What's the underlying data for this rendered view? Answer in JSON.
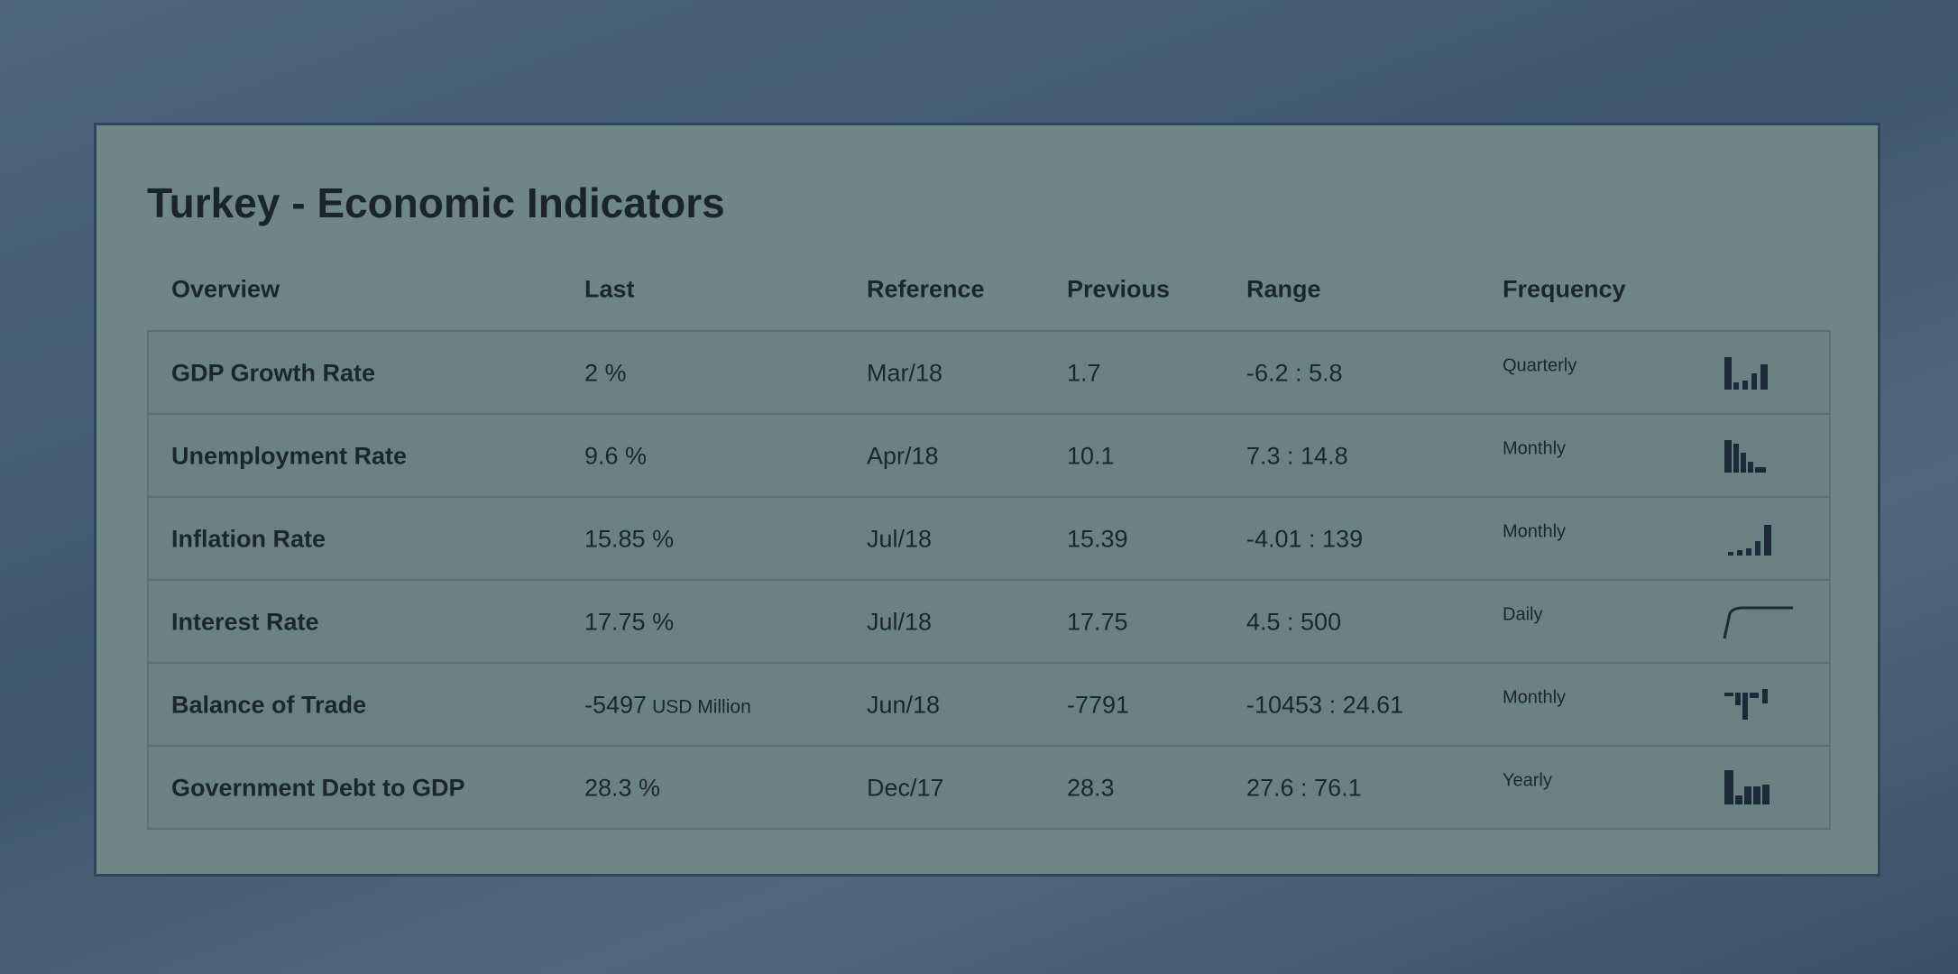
{
  "header": {
    "title": "Turkey - Economic Indicators"
  },
  "table": {
    "columns": [
      "Overview",
      "Last",
      "Reference",
      "Previous",
      "Range",
      "Frequency"
    ],
    "rows": [
      {
        "cells": [
          "GDP Growth Rate",
          "2 %",
          "Mar/18",
          "1.7",
          "-6.2 : 5.8",
          "Quarterly"
        ]
      },
      {
        "cells": [
          "Unemployment Rate",
          "9.6 %",
          "Apr/18",
          "10.1",
          "7.3 : 14.8",
          "Monthly"
        ]
      },
      {
        "cells": [
          "Inflation Rate",
          "15.85 %",
          "Jul/18",
          "15.39",
          "-4.01 : 139",
          "Monthly"
        ]
      },
      {
        "cells": [
          "Interest Rate",
          "17.75 %",
          "Jul/18",
          "17.75",
          "4.5 : 500",
          "Daily"
        ]
      },
      {
        "cells": [
          "Balance of Trade",
          "-5497",
          "Jun/18",
          "-7791",
          "-10453 : 24.61",
          "Monthly"
        ],
        "unit": "USD Million"
      },
      {
        "cells": [
          "Government Debt to GDP",
          "28.3 %",
          "Dec/17",
          "28.3",
          "27.6 : 76.1",
          "Yearly"
        ]
      }
    ]
  }
}
